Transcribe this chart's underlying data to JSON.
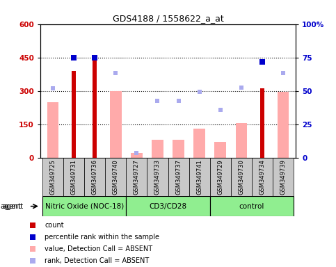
{
  "title": "GDS4188 / 1558622_a_at",
  "samples": [
    "GSM349725",
    "GSM349731",
    "GSM349736",
    "GSM349740",
    "GSM349727",
    "GSM349733",
    "GSM349737",
    "GSM349741",
    "GSM349729",
    "GSM349730",
    "GSM349734",
    "GSM349739"
  ],
  "groups": [
    {
      "name": "Nitric Oxide (NOC-18)",
      "start": 0,
      "end": 4
    },
    {
      "name": "CD3/CD28",
      "start": 4,
      "end": 8
    },
    {
      "name": "control",
      "start": 8,
      "end": 12
    }
  ],
  "count_values": [
    null,
    390,
    460,
    null,
    null,
    null,
    null,
    null,
    null,
    null,
    310,
    null
  ],
  "count_color": "#cc0000",
  "value_absent": [
    250,
    null,
    null,
    300,
    20,
    80,
    80,
    130,
    70,
    155,
    null,
    295
  ],
  "value_absent_color": "#ffaaaa",
  "rank_absent": [
    310,
    null,
    null,
    380,
    20,
    255,
    255,
    295,
    215,
    315,
    null,
    380
  ],
  "rank_absent_color": "#aaaaee",
  "percentile_present": [
    null,
    450,
    450,
    null,
    null,
    null,
    null,
    null,
    null,
    null,
    430,
    null
  ],
  "percentile_color": "#0000cc",
  "ylim_left": [
    0,
    600
  ],
  "ylim_right": [
    0,
    100
  ],
  "yticks_left": [
    0,
    150,
    300,
    450,
    600
  ],
  "ytick_labels_left": [
    "0",
    "150",
    "300",
    "450",
    "600"
  ],
  "yticks_right": [
    0,
    25,
    50,
    75,
    100
  ],
  "ytick_labels_right": [
    "0",
    "25",
    "50",
    "75",
    "100%"
  ],
  "grid_lines": [
    150,
    300,
    450
  ],
  "green_color": "#90EE90",
  "gray_color": "#c8c8c8",
  "background_color": "#ffffff"
}
